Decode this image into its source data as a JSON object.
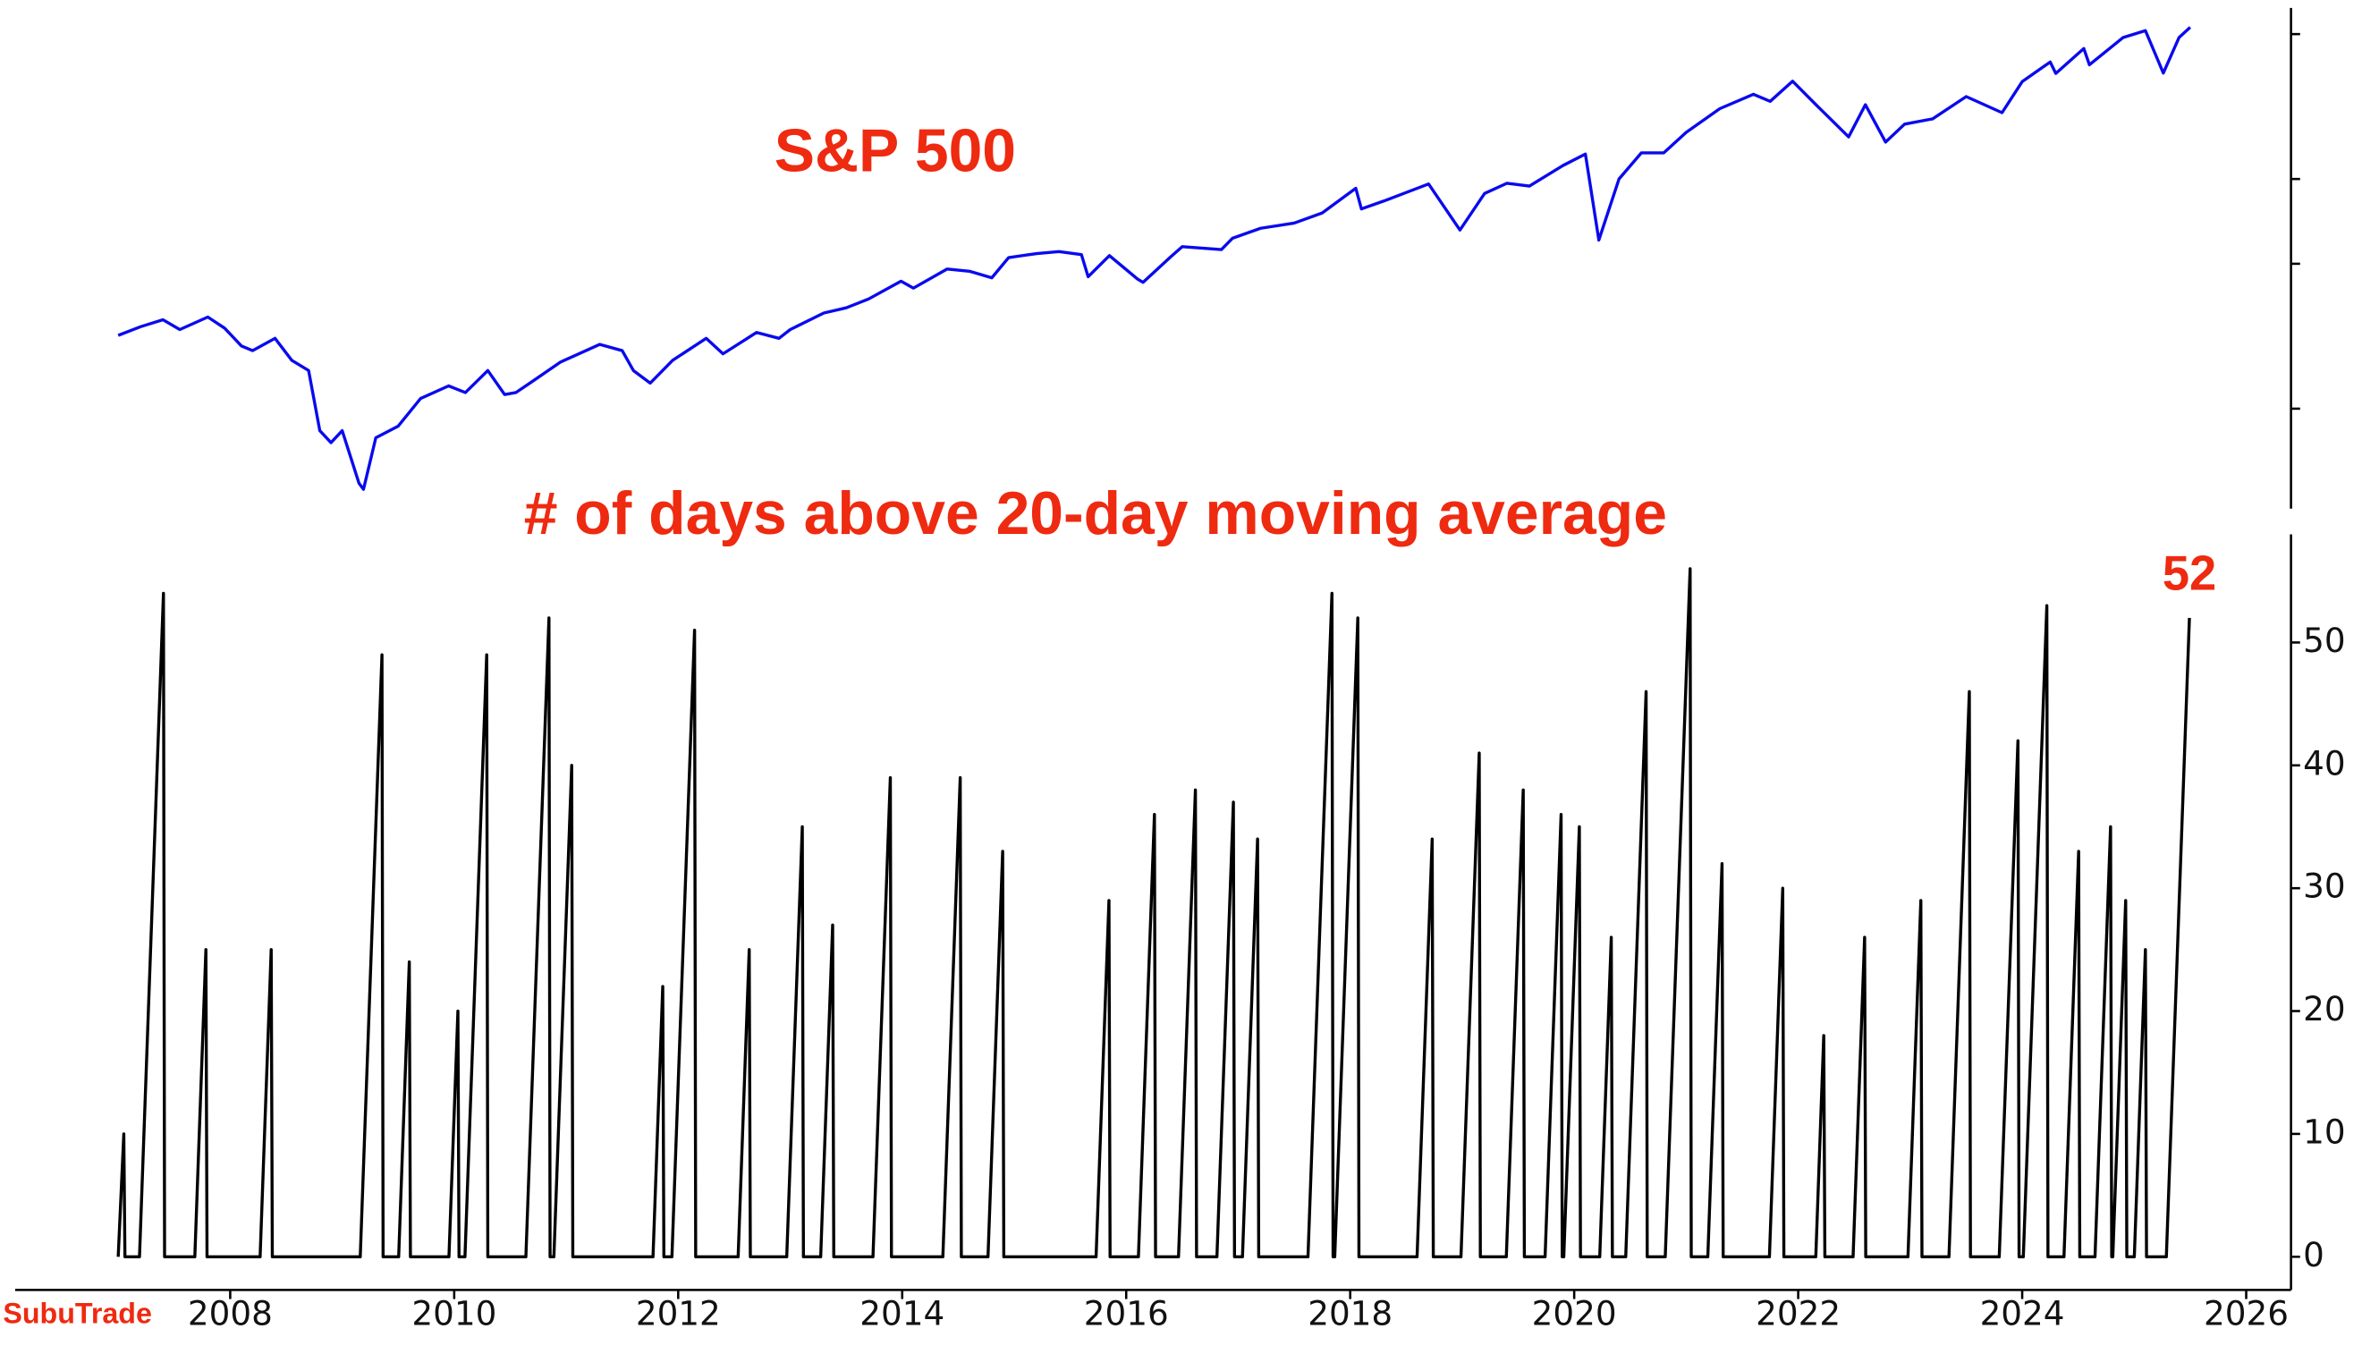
{
  "chart_data": [
    {
      "type": "line",
      "title": "S&P 500",
      "log_y": true,
      "tick_labels": false,
      "xlim": [
        2006.08,
        2026.4
      ],
      "ylim": [
        620,
        6800
      ],
      "yticks": [
        1000,
        2000,
        3000,
        6000
      ],
      "x": [
        2007.0,
        2007.2,
        2007.4,
        2007.55,
        2007.8,
        2007.95,
        2008.1,
        2008.2,
        2008.4,
        2008.55,
        2008.7,
        2008.8,
        2008.9,
        2009.0,
        2009.15,
        2009.19,
        2009.3,
        2009.5,
        2009.7,
        2009.95,
        2010.1,
        2010.3,
        2010.45,
        2010.55,
        2010.7,
        2010.95,
        2011.3,
        2011.5,
        2011.6,
        2011.75,
        2011.95,
        2012.25,
        2012.4,
        2012.7,
        2012.9,
        2013.0,
        2013.3,
        2013.5,
        2013.7,
        2013.99,
        2014.1,
        2014.4,
        2014.6,
        2014.8,
        2014.95,
        2015.2,
        2015.4,
        2015.6,
        2015.66,
        2015.85,
        2016.1,
        2016.15,
        2016.4,
        2016.5,
        2016.85,
        2016.95,
        2017.2,
        2017.5,
        2017.75,
        2018.05,
        2018.1,
        2018.3,
        2018.7,
        2018.98,
        2019.2,
        2019.4,
        2019.6,
        2019.9,
        2020.1,
        2020.22,
        2020.4,
        2020.6,
        2020.8,
        2021.0,
        2021.3,
        2021.6,
        2021.75,
        2021.95,
        2022.15,
        2022.45,
        2022.6,
        2022.78,
        2022.95,
        2023.2,
        2023.5,
        2023.82,
        2024.0,
        2024.25,
        2024.3,
        2024.55,
        2024.6,
        2024.9,
        2025.1,
        2025.26,
        2025.4,
        2025.5
      ],
      "series": [
        {
          "color": "#0a0aee",
          "values": [
            1420,
            1480,
            1530,
            1460,
            1550,
            1470,
            1350,
            1320,
            1400,
            1260,
            1200,
            900,
            850,
            900,
            700,
            680,
            870,
            920,
            1050,
            1115,
            1080,
            1200,
            1070,
            1080,
            1140,
            1250,
            1360,
            1320,
            1200,
            1130,
            1260,
            1400,
            1300,
            1440,
            1400,
            1460,
            1580,
            1620,
            1690,
            1840,
            1780,
            1950,
            1930,
            1870,
            2060,
            2100,
            2120,
            2090,
            1880,
            2080,
            1860,
            1830,
            2070,
            2170,
            2140,
            2260,
            2370,
            2430,
            2550,
            2870,
            2600,
            2700,
            2930,
            2350,
            2800,
            2940,
            2900,
            3200,
            3380,
            2240,
            3000,
            3400,
            3400,
            3750,
            4200,
            4500,
            4350,
            4790,
            4300,
            3670,
            4280,
            3580,
            3900,
            4000,
            4450,
            4120,
            4780,
            5250,
            4970,
            5600,
            5180,
            5900,
            6100,
            4980,
            5900,
            6200
          ]
        }
      ]
    },
    {
      "type": "line",
      "title": "# of days above 20-day moving average",
      "source": "SubuTrade",
      "label_last": true,
      "xlim": [
        2006.08,
        2026.4
      ],
      "ylim": [
        -2.7,
        58.8
      ],
      "yticks": [
        0,
        10,
        20,
        30,
        40,
        50
      ],
      "xticks": [
        2008,
        2010,
        2012,
        2014,
        2016,
        2018,
        2020,
        2022,
        2024,
        2026
      ],
      "x": [
        2007.0,
        2007.05,
        2007.06,
        2007.19,
        2007.404,
        2007.414,
        2007.684,
        2007.783,
        2007.793,
        2008.267,
        2008.366,
        2008.376,
        2009.161,
        2009.355,
        2009.365,
        2009.504,
        2009.599,
        2009.609,
        2009.953,
        2010.033,
        2010.043,
        2010.096,
        2010.29,
        2010.3,
        2010.64,
        2010.846,
        2010.856,
        2010.89,
        2011.049,
        2011.059,
        2011.775,
        2011.862,
        2011.872,
        2011.944,
        2012.146,
        2012.156,
        2012.535,
        2012.634,
        2012.644,
        2012.969,
        2013.108,
        2013.118,
        2013.272,
        2013.379,
        2013.389,
        2013.739,
        2013.894,
        2013.904,
        2014.363,
        2014.518,
        2014.528,
        2014.766,
        2014.897,
        2014.907,
        2015.731,
        2015.846,
        2015.856,
        2016.109,
        2016.252,
        2016.262,
        2016.467,
        2016.618,
        2016.628,
        2016.81,
        2016.957,
        2016.967,
        2017.038,
        2017.173,
        2017.183,
        2017.623,
        2017.837,
        2017.847,
        2017.862,
        2018.068,
        2018.078,
        2018.597,
        2018.732,
        2018.742,
        2018.989,
        2019.152,
        2019.162,
        2019.394,
        2019.545,
        2019.555,
        2019.74,
        2019.883,
        2019.893,
        2019.907,
        2020.046,
        2020.056,
        2020.228,
        2020.331,
        2020.341,
        2020.46,
        2020.642,
        2020.652,
        2020.813,
        2021.035,
        2021.045,
        2021.193,
        2021.32,
        2021.33,
        2021.743,
        2021.862,
        2021.872,
        2022.157,
        2022.228,
        2022.238,
        2022.49,
        2022.593,
        2022.603,
        2022.98,
        2023.095,
        2023.105,
        2023.346,
        2023.528,
        2023.538,
        2023.795,
        2023.962,
        2023.972,
        2024.01,
        2024.22,
        2024.23,
        2024.373,
        2024.504,
        2024.514,
        2024.65,
        2024.789,
        2024.799,
        2024.809,
        2024.924,
        2024.934,
        2025.001,
        2025.1,
        2025.11,
        2025.287,
        2025.493
      ],
      "series": [
        {
          "color": "#000000",
          "values": [
            0,
            10,
            0,
            0,
            54,
            0,
            0,
            25,
            0,
            0,
            25,
            0,
            0,
            49,
            0,
            0,
            24,
            0,
            0,
            20,
            0,
            0,
            49,
            0,
            0,
            52,
            0,
            0,
            40,
            0,
            0,
            22,
            0,
            0,
            51,
            0,
            0,
            25,
            0,
            0,
            35,
            0,
            0,
            27,
            0,
            0,
            39,
            0,
            0,
            39,
            0,
            0,
            33,
            0,
            0,
            29,
            0,
            0,
            36,
            0,
            0,
            38,
            0,
            0,
            37,
            0,
            0,
            34,
            0,
            0,
            54,
            0,
            0,
            52,
            0,
            0,
            34,
            0,
            0,
            41,
            0,
            0,
            38,
            0,
            0,
            36,
            0,
            0,
            35,
            0,
            0,
            26,
            0,
            0,
            46,
            0,
            0,
            56,
            0,
            0,
            32,
            0,
            0,
            30,
            0,
            0,
            18,
            0,
            0,
            26,
            0,
            0,
            29,
            0,
            0,
            46,
            0,
            0,
            42,
            0,
            0,
            53,
            0,
            0,
            33,
            0,
            0,
            35,
            0,
            0,
            29,
            0,
            0,
            25,
            0,
            0,
            52
          ]
        }
      ]
    }
  ]
}
